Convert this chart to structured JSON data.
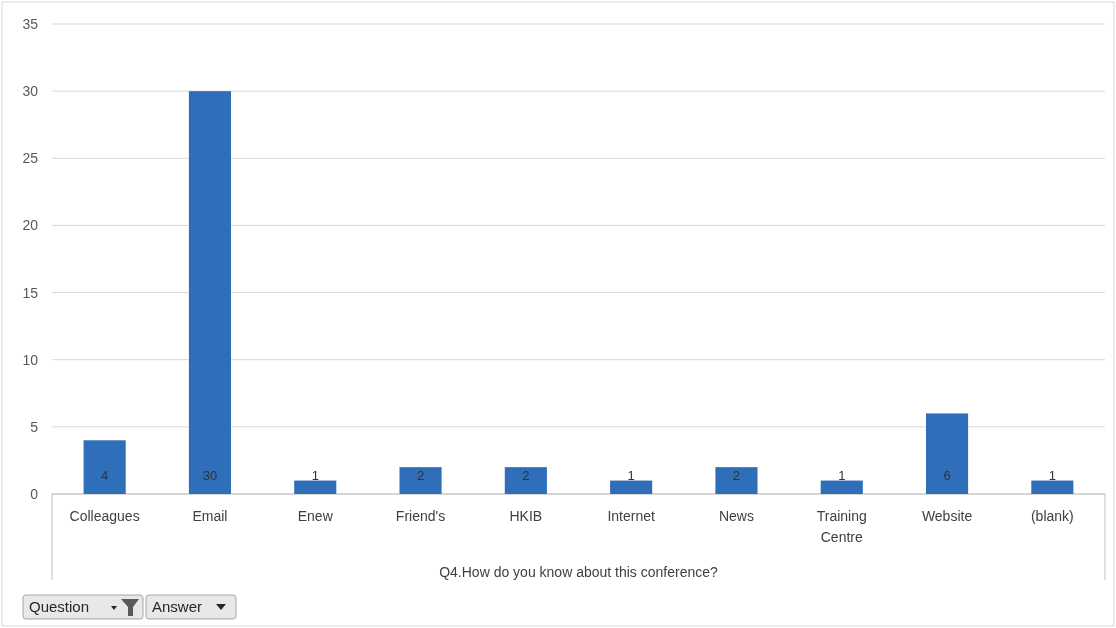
{
  "chart_data": {
    "type": "bar",
    "xlabel": "Q4.How do you know about this conference?",
    "categories": [
      "Colleagues",
      "Email",
      "Enew",
      "Friend's",
      "HKIB",
      "Internet",
      "News",
      "Training Centre",
      "Website",
      "(blank)"
    ],
    "values": [
      4,
      30,
      1,
      2,
      2,
      1,
      2,
      1,
      6,
      1
    ],
    "color": "#2f6fba",
    "ylim": [
      0,
      35
    ],
    "yticks": [
      0,
      5,
      10,
      15,
      20,
      25,
      30,
      35
    ],
    "grid": "y",
    "data_labels": true,
    "annotations": [
      "Question",
      "Answer"
    ]
  }
}
